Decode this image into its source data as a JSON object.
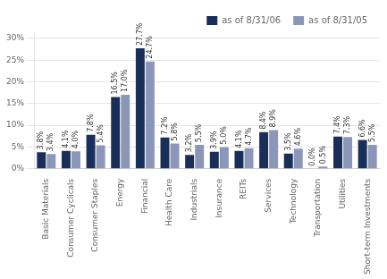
{
  "chart_data": {
    "type": "bar",
    "categories": [
      "Basic Materials",
      "Consumer Cyclicals",
      "Consumer Staples",
      "Energy",
      "Financial",
      "Health Care",
      "Industrials",
      "Insurance",
      "REITs",
      "Services",
      "Technology",
      "Transportation",
      "Utilities",
      "Short-term Investments"
    ],
    "series": [
      {
        "name": "as of 8/31/06",
        "color": "#1a2e5a",
        "values": [
          3.8,
          4.1,
          7.8,
          16.5,
          27.7,
          7.2,
          3.2,
          3.9,
          4.1,
          8.4,
          3.5,
          0.0,
          7.4,
          6.6
        ],
        "value_labels": [
          "3.8%",
          "4.1%",
          "7.8%",
          "16.5%",
          "27.7%",
          "7.2%",
          "3.2%",
          "3.9%",
          "4.1%",
          "8.4%",
          "3.5%",
          "0.0%",
          "7.4%",
          "6.6%"
        ]
      },
      {
        "name": "as of 8/31/05",
        "color": "#8b96b8",
        "values": [
          3.4,
          4.0,
          5.4,
          17.0,
          24.7,
          5.8,
          5.5,
          5.0,
          4.7,
          8.9,
          4.6,
          0.5,
          7.3,
          5.5
        ],
        "value_labels": [
          "3.4%",
          "4.0%",
          "5.4%",
          "17.0%",
          "24.7%",
          "5.8%",
          "5.5%",
          "5.0%",
          "4.7%",
          "8.9%",
          "4.6%",
          "0.5%",
          "7.3%",
          "5.5%"
        ]
      }
    ],
    "ylim": [
      0,
      31
    ],
    "yticks": [
      {
        "value": 0,
        "label": "0%"
      },
      {
        "value": 5,
        "label": "5%"
      },
      {
        "value": 10,
        "label": "10%"
      },
      {
        "value": 15,
        "label": "15%"
      },
      {
        "value": 20,
        "label": "20%"
      },
      {
        "value": 25,
        "label": "25%"
      },
      {
        "value": 30,
        "label": "30%"
      }
    ],
    "grid": true,
    "legend": "upper right",
    "data_labels": true
  }
}
